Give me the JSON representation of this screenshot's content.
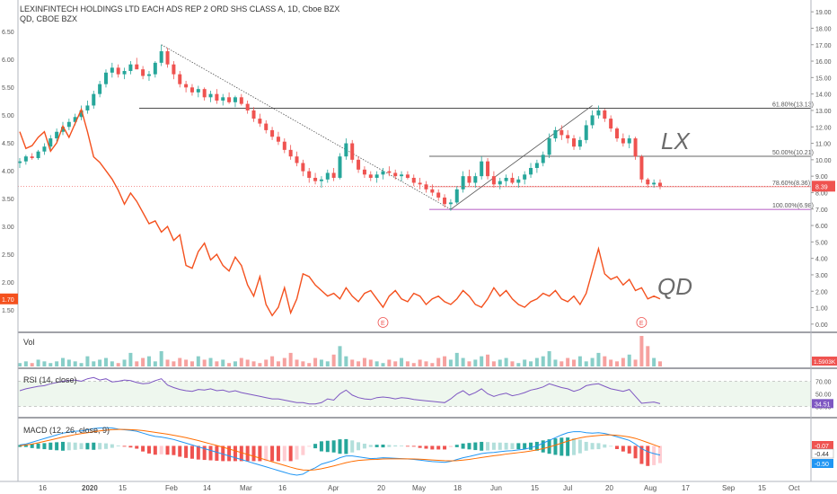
{
  "header": {
    "main_symbol": "LEXINFINTECH HOLDINGS LTD EACH ADS REP 2 ORD SHS CLASS A, 1D, Cboe BZX",
    "compare_symbol": "QD, CBOE BZX"
  },
  "labels": {
    "lx": "LX",
    "qd": "QD"
  },
  "earnings_marker": "E",
  "colors": {
    "up": "#26a69a",
    "down": "#ef5350",
    "qd_line": "#f4511e",
    "rsi_line": "#7e57c2",
    "macd_line": "#2196f3",
    "signal_line": "#ff6d00"
  },
  "chart_data": [
    {
      "type": "candlestick",
      "name": "price-pane",
      "series_label": "LX",
      "left_axis": {
        "ticks": [
          "6.50",
          "6.00",
          "5.50",
          "5.00",
          "4.50",
          "4.00",
          "3.50",
          "3.00",
          "2.50",
          "2.00",
          "1.50"
        ],
        "ylim": [
          1.1,
          7.0
        ]
      },
      "right_axis": {
        "ticks": [
          "19.00",
          "18.00",
          "17.00",
          "16.00",
          "15.00",
          "14.00",
          "13.00",
          "12.00",
          "11.00",
          "10.00",
          "9.00",
          "8.00",
          "7.00",
          "6.00",
          "5.00",
          "4.00",
          "3.00",
          "2.00",
          "1.00",
          "0.00"
        ],
        "ylim": [
          -0.5,
          19.5
        ]
      },
      "last_price_right": "8.39",
      "last_price_left": "1.70",
      "x_ticks": [
        "16",
        "2020",
        "15",
        "Feb",
        "14",
        "Mar",
        "16",
        "Apr",
        "20",
        "May",
        "18",
        "Jun",
        "15",
        "Jul",
        "20",
        "Aug",
        "17",
        "Sep",
        "15",
        "Oct"
      ],
      "candles": [
        [
          9.8,
          10.1,
          9.5,
          9.9
        ],
        [
          9.9,
          10.3,
          9.7,
          10.2
        ],
        [
          10.2,
          10.4,
          10.0,
          10.1
        ],
        [
          10.1,
          10.6,
          10.0,
          10.5
        ],
        [
          10.5,
          11.0,
          10.3,
          10.8
        ],
        [
          10.8,
          11.5,
          10.6,
          11.3
        ],
        [
          11.3,
          11.9,
          11.1,
          11.7
        ],
        [
          11.7,
          12.3,
          11.5,
          12.0
        ],
        [
          12.0,
          12.5,
          11.8,
          12.3
        ],
        [
          12.3,
          12.8,
          12.1,
          12.6
        ],
        [
          12.6,
          13.3,
          12.4,
          13.0
        ],
        [
          13.0,
          13.6,
          12.8,
          13.3
        ],
        [
          13.3,
          14.2,
          13.1,
          14.0
        ],
        [
          14.0,
          14.8,
          13.8,
          14.6
        ],
        [
          14.6,
          15.5,
          14.4,
          15.3
        ],
        [
          15.3,
          15.9,
          15.0,
          15.6
        ],
        [
          15.6,
          15.8,
          15.0,
          15.2
        ],
        [
          15.2,
          15.6,
          14.9,
          15.4
        ],
        [
          15.4,
          16.0,
          15.2,
          15.8
        ],
        [
          15.8,
          16.2,
          15.5,
          15.5
        ],
        [
          15.5,
          15.7,
          14.9,
          15.1
        ],
        [
          15.1,
          15.4,
          14.8,
          15.2
        ],
        [
          15.2,
          16.0,
          15.0,
          15.9
        ],
        [
          15.9,
          17.0,
          15.7,
          16.6
        ],
        [
          16.6,
          16.8,
          15.6,
          15.8
        ],
        [
          15.8,
          16.0,
          14.9,
          15.2
        ],
        [
          15.2,
          15.4,
          14.4,
          14.6
        ],
        [
          14.6,
          14.8,
          14.1,
          14.4
        ],
        [
          14.4,
          14.6,
          13.9,
          14.1
        ],
        [
          14.1,
          14.5,
          13.8,
          14.3
        ],
        [
          14.3,
          14.4,
          13.6,
          13.8
        ],
        [
          13.8,
          14.2,
          13.5,
          14.0
        ],
        [
          14.0,
          14.3,
          13.4,
          13.6
        ],
        [
          13.6,
          14.0,
          13.3,
          13.8
        ],
        [
          13.8,
          14.1,
          13.4,
          13.5
        ],
        [
          13.5,
          13.9,
          13.2,
          13.8
        ],
        [
          13.8,
          14.0,
          13.3,
          13.4
        ],
        [
          13.4,
          13.6,
          12.8,
          13.0
        ],
        [
          13.0,
          13.2,
          12.3,
          12.5
        ],
        [
          12.5,
          12.8,
          12.0,
          12.2
        ],
        [
          12.2,
          12.4,
          11.6,
          11.8
        ],
        [
          11.8,
          12.0,
          11.2,
          11.4
        ],
        [
          11.4,
          11.7,
          10.9,
          11.1
        ],
        [
          11.1,
          11.3,
          10.4,
          10.6
        ],
        [
          10.6,
          10.9,
          10.0,
          10.2
        ],
        [
          10.2,
          10.5,
          9.6,
          9.8
        ],
        [
          9.8,
          10.0,
          9.0,
          9.3
        ],
        [
          9.3,
          9.5,
          8.6,
          8.9
        ],
        [
          8.9,
          9.2,
          8.5,
          8.7
        ],
        [
          8.7,
          9.0,
          8.3,
          8.8
        ],
        [
          8.8,
          9.4,
          8.6,
          9.2
        ],
        [
          9.2,
          9.5,
          8.7,
          8.9
        ],
        [
          8.9,
          10.4,
          8.8,
          10.2
        ],
        [
          10.2,
          11.3,
          10.0,
          11.0
        ],
        [
          11.0,
          11.2,
          9.8,
          10.0
        ],
        [
          10.0,
          10.2,
          9.2,
          9.4
        ],
        [
          9.4,
          9.6,
          8.9,
          9.1
        ],
        [
          9.1,
          9.3,
          8.7,
          8.9
        ],
        [
          8.9,
          9.3,
          8.6,
          9.1
        ],
        [
          9.1,
          9.5,
          8.8,
          9.3
        ],
        [
          9.3,
          9.6,
          9.0,
          9.2
        ],
        [
          9.2,
          9.4,
          8.8,
          9.0
        ],
        [
          9.0,
          9.3,
          8.7,
          9.1
        ],
        [
          9.1,
          9.3,
          8.8,
          8.9
        ],
        [
          8.9,
          9.1,
          8.4,
          8.6
        ],
        [
          8.6,
          8.9,
          8.2,
          8.5
        ],
        [
          8.5,
          8.7,
          8.0,
          8.2
        ],
        [
          8.2,
          8.5,
          7.8,
          8.0
        ],
        [
          8.0,
          8.2,
          7.5,
          7.7
        ],
        [
          7.7,
          7.9,
          7.1,
          7.3
        ],
        [
          7.3,
          7.6,
          6.9,
          7.4
        ],
        [
          7.4,
          8.4,
          7.3,
          8.2
        ],
        [
          8.2,
          9.3,
          8.0,
          9.0
        ],
        [
          9.0,
          9.4,
          8.4,
          8.6
        ],
        [
          8.6,
          9.2,
          8.3,
          9.0
        ],
        [
          9.0,
          10.2,
          8.8,
          9.9
        ],
        [
          9.9,
          10.1,
          8.8,
          9.0
        ],
        [
          9.0,
          9.3,
          8.3,
          8.5
        ],
        [
          8.5,
          8.9,
          8.2,
          8.7
        ],
        [
          8.7,
          9.1,
          8.4,
          8.9
        ],
        [
          8.9,
          9.2,
          8.5,
          8.6
        ],
        [
          8.6,
          9.0,
          8.3,
          8.8
        ],
        [
          8.8,
          9.3,
          8.5,
          9.1
        ],
        [
          9.1,
          9.8,
          8.9,
          9.5
        ],
        [
          9.5,
          10.0,
          9.2,
          9.8
        ],
        [
          9.8,
          10.5,
          9.6,
          10.3
        ],
        [
          10.3,
          11.6,
          10.1,
          11.3
        ],
        [
          11.3,
          12.0,
          11.1,
          11.8
        ],
        [
          11.8,
          12.1,
          11.2,
          11.5
        ],
        [
          11.5,
          11.8,
          11.0,
          11.3
        ],
        [
          11.3,
          11.5,
          10.6,
          10.8
        ],
        [
          10.8,
          11.4,
          10.6,
          11.2
        ],
        [
          11.2,
          12.4,
          11.0,
          12.1
        ],
        [
          12.1,
          13.0,
          11.9,
          12.7
        ],
        [
          12.7,
          13.3,
          12.5,
          13.0
        ],
        [
          13.0,
          13.1,
          12.3,
          12.5
        ],
        [
          12.5,
          12.7,
          11.7,
          11.9
        ],
        [
          11.9,
          12.0,
          11.1,
          11.3
        ],
        [
          11.3,
          11.6,
          10.8,
          11.0
        ],
        [
          11.0,
          11.5,
          10.7,
          11.3
        ],
        [
          11.3,
          11.4,
          10.0,
          10.2
        ],
        [
          10.2,
          10.3,
          8.6,
          8.8
        ],
        [
          8.8,
          8.9,
          8.3,
          8.5
        ],
        [
          8.5,
          8.8,
          8.3,
          8.6
        ],
        [
          8.6,
          8.8,
          8.2,
          8.39
        ]
      ],
      "compare_series": {
        "name": "QD",
        "values": [
          4.7,
          4.4,
          4.45,
          4.6,
          4.7,
          4.35,
          4.5,
          4.8,
          4.6,
          4.85,
          5.1,
          4.7,
          4.25,
          4.15,
          4.0,
          3.85,
          3.65,
          3.4,
          3.6,
          3.45,
          3.25,
          3.05,
          3.1,
          2.9,
          3.0,
          2.75,
          2.85,
          2.3,
          2.25,
          2.55,
          2.7,
          2.4,
          2.5,
          2.3,
          2.2,
          2.45,
          2.3,
          1.95,
          1.75,
          2.1,
          1.6,
          1.4,
          1.55,
          1.9,
          1.45,
          1.7,
          2.15,
          2.1,
          1.95,
          1.85,
          1.75,
          1.8,
          1.7,
          1.9,
          1.75,
          1.65,
          1.8,
          1.85,
          1.7,
          1.55,
          1.75,
          1.85,
          1.7,
          1.65,
          1.8,
          1.75,
          1.6,
          1.7,
          1.75,
          1.65,
          1.6,
          1.7,
          1.85,
          1.75,
          1.6,
          1.55,
          1.7,
          1.9,
          1.75,
          1.85,
          1.7,
          1.6,
          1.55,
          1.65,
          1.7,
          1.8,
          1.75,
          1.85,
          1.7,
          1.65,
          1.75,
          1.6,
          1.8,
          2.2,
          2.6,
          2.15,
          2.05,
          2.1,
          1.95,
          2.05,
          1.85,
          1.9,
          1.7,
          1.75,
          1.7
        ]
      },
      "fib_levels": [
        {
          "label": "61.80%(13.13)",
          "value": 13.13
        },
        {
          "label": "50.00%(10.21)",
          "value": 10.21
        },
        {
          "label": "78.60%(8.36)",
          "value": 8.36
        },
        {
          "label": "100.00%(6.98)",
          "value": 6.98
        }
      ],
      "earnings_positions": [
        59,
        101,
        139
      ]
    },
    {
      "type": "bar",
      "name": "volume-pane",
      "title": "Vol",
      "last_value": "1.5903K",
      "values": [
        2,
        3,
        2,
        4,
        3,
        2,
        3,
        5,
        4,
        3,
        2,
        6,
        3,
        4,
        5,
        3,
        2,
        4,
        8,
        3,
        5,
        6,
        3,
        9,
        4,
        3,
        5,
        4,
        3,
        6,
        4,
        5,
        3,
        4,
        2,
        3,
        5,
        4,
        3,
        2,
        4,
        6,
        3,
        5,
        8,
        4,
        3,
        2,
        5,
        4,
        3,
        7,
        12,
        6,
        4,
        3,
        5,
        4,
        3,
        2,
        4,
        3,
        5,
        3,
        2,
        4,
        3,
        2,
        5,
        6,
        4,
        8,
        5,
        3,
        4,
        6,
        7,
        3,
        4,
        5,
        3,
        2,
        4,
        3,
        5,
        6,
        9,
        4,
        3,
        5,
        4,
        6,
        3,
        5,
        8,
        6,
        4,
        3,
        5,
        7,
        4,
        18,
        12,
        5,
        3
      ]
    },
    {
      "type": "line",
      "name": "rsi-pane",
      "title": "RSI (14, close)",
      "ticks": [
        "70.00",
        "50.00",
        "30.00"
      ],
      "last_value": "34.51",
      "ylim": [
        15,
        85
      ],
      "values": [
        55,
        58,
        60,
        62,
        63,
        66,
        68,
        70,
        71,
        72,
        70,
        74,
        76,
        72,
        74,
        69,
        70,
        72,
        71,
        68,
        66,
        67,
        71,
        74,
        64,
        60,
        57,
        55,
        54,
        57,
        56,
        58,
        55,
        56,
        53,
        55,
        52,
        50,
        48,
        46,
        44,
        42,
        42,
        40,
        38,
        36,
        36,
        34,
        34,
        36,
        42,
        40,
        50,
        56,
        48,
        44,
        42,
        41,
        44,
        45,
        44,
        42,
        44,
        43,
        41,
        40,
        39,
        38,
        37,
        36,
        42,
        50,
        55,
        48,
        52,
        58,
        50,
        46,
        49,
        51,
        47,
        49,
        52,
        56,
        58,
        61,
        66,
        63,
        60,
        58,
        54,
        57,
        63,
        65,
        66,
        62,
        58,
        56,
        54,
        57,
        46,
        35,
        36,
        37,
        34.51
      ]
    },
    {
      "type": "histogram",
      "name": "macd-pane",
      "title": "MACD (12, 26, close, 9)",
      "values_right": [
        "-0.07",
        "-0.44",
        "-0.50"
      ],
      "ylim": [
        -1.8,
        1.3
      ],
      "macd": [
        0.05,
        0.1,
        0.2,
        0.3,
        0.4,
        0.5,
        0.6,
        0.7,
        0.75,
        0.8,
        0.82,
        0.88,
        0.95,
        0.98,
        1.0,
        0.98,
        0.92,
        0.88,
        0.85,
        0.8,
        0.7,
        0.6,
        0.52,
        0.48,
        0.42,
        0.35,
        0.25,
        0.15,
        0.05,
        -0.05,
        -0.15,
        -0.25,
        -0.35,
        -0.45,
        -0.55,
        -0.65,
        -0.75,
        -0.85,
        -0.95,
        -1.05,
        -1.15,
        -1.25,
        -1.35,
        -1.45,
        -1.55,
        -1.6,
        -1.55,
        -1.35,
        -1.2,
        -1.0,
        -0.9,
        -0.8,
        -0.65,
        -0.55,
        -0.55,
        -0.6,
        -0.65,
        -0.7,
        -0.68,
        -0.65,
        -0.66,
        -0.68,
        -0.7,
        -0.72,
        -0.74,
        -0.78,
        -0.82,
        -0.86,
        -0.88,
        -0.9,
        -0.85,
        -0.75,
        -0.65,
        -0.58,
        -0.5,
        -0.42,
        -0.38,
        -0.36,
        -0.32,
        -0.28,
        -0.26,
        -0.22,
        -0.18,
        -0.1,
        0.0,
        0.15,
        0.3,
        0.45,
        0.6,
        0.72,
        0.78,
        0.78,
        0.72,
        0.7,
        0.72,
        0.68,
        0.6,
        0.5,
        0.4,
        0.3,
        0.1,
        -0.15,
        -0.32,
        -0.42,
        -0.5
      ],
      "signal": [
        0.0,
        0.05,
        0.1,
        0.17,
        0.25,
        0.32,
        0.4,
        0.48,
        0.55,
        0.62,
        0.67,
        0.72,
        0.77,
        0.82,
        0.86,
        0.89,
        0.9,
        0.9,
        0.89,
        0.87,
        0.84,
        0.79,
        0.74,
        0.69,
        0.64,
        0.58,
        0.52,
        0.45,
        0.37,
        0.29,
        0.2,
        0.11,
        0.02,
        -0.07,
        -0.17,
        -0.27,
        -0.37,
        -0.47,
        -0.57,
        -0.67,
        -0.77,
        -0.87,
        -0.97,
        -1.07,
        -1.17,
        -1.26,
        -1.32,
        -1.33,
        -1.31,
        -1.25,
        -1.18,
        -1.1,
        -1.01,
        -0.92,
        -0.85,
        -0.8,
        -0.77,
        -0.75,
        -0.74,
        -0.72,
        -0.71,
        -0.71,
        -0.71,
        -0.71,
        -0.72,
        -0.73,
        -0.75,
        -0.77,
        -0.79,
        -0.81,
        -0.82,
        -0.81,
        -0.78,
        -0.74,
        -0.69,
        -0.64,
        -0.59,
        -0.54,
        -0.5,
        -0.45,
        -0.41,
        -0.37,
        -0.33,
        -0.28,
        -0.22,
        -0.15,
        -0.06,
        0.04,
        0.15,
        0.26,
        0.36,
        0.44,
        0.5,
        0.54,
        0.57,
        0.6,
        0.6,
        0.58,
        0.54,
        0.49,
        0.41,
        0.3,
        0.18,
        0.06,
        -0.07
      ]
    }
  ]
}
